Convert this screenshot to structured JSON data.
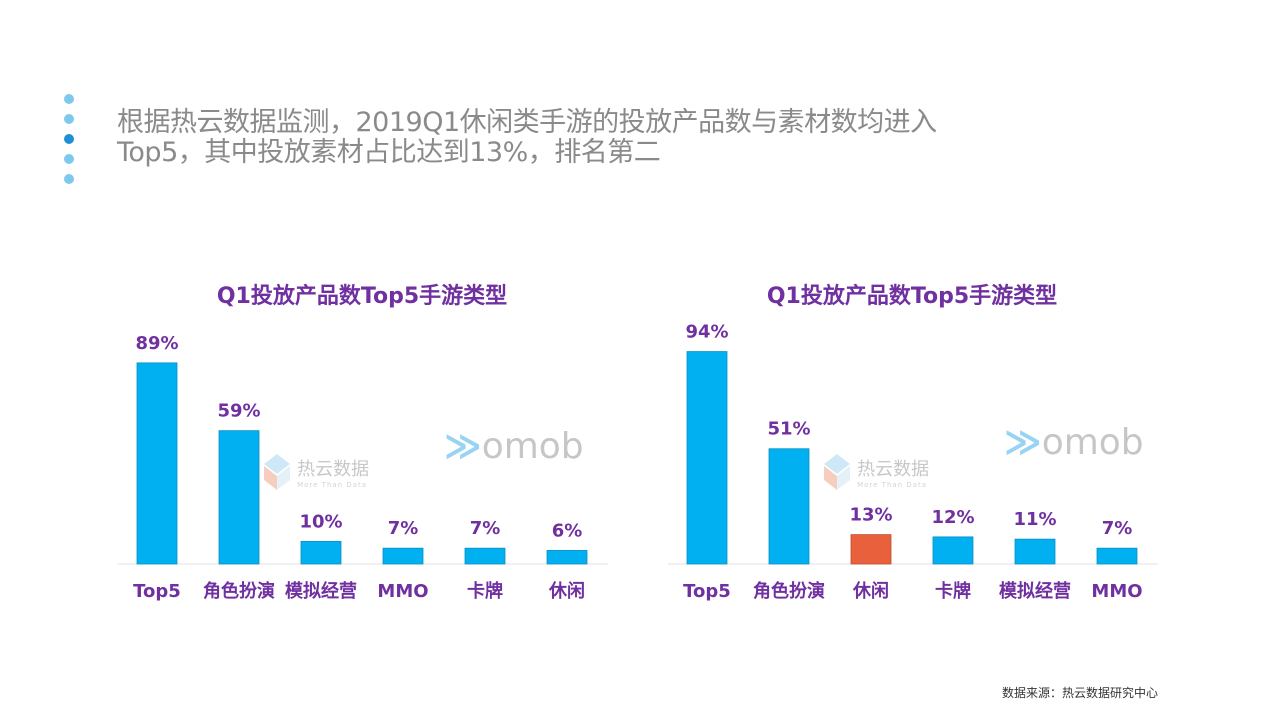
{
  "headline": {
    "line1": "根据热云数据监测，2019Q1休闲类手游的投放产品数与素材数均进入",
    "line2": "Top5，其中投放素材占比达到13%，排名第二"
  },
  "watermarks": {
    "reyun_logo": "热云数据",
    "reyun_tagline": "More Than Data",
    "yomob_logo": "omob"
  },
  "source": "数据来源：热云数据研究中心",
  "colors": {
    "bar": "#00b0f0",
    "highlight": "#e8613c",
    "text": "#7030a0"
  },
  "chart_data": [
    {
      "type": "bar",
      "title": "Q1投放产品数Top5手游类型",
      "categories": [
        "Top5",
        "角色扮演",
        "模拟经营",
        "MMO",
        "卡牌",
        "休闲"
      ],
      "values": [
        89,
        59,
        10,
        7,
        7,
        6
      ],
      "value_labels": [
        "89%",
        "59%",
        "10%",
        "7%",
        "7%",
        "6%"
      ],
      "highlight": [],
      "ylim": [
        0,
        100
      ],
      "grid": false
    },
    {
      "type": "bar",
      "title": "Q1投放产品数Top5手游类型",
      "categories": [
        "Top5",
        "角色扮演",
        "休闲",
        "卡牌",
        "模拟经营",
        "MMO"
      ],
      "values": [
        94,
        51,
        13,
        12,
        11,
        7
      ],
      "value_labels": [
        "94%",
        "51%",
        "13%",
        "12%",
        "11%",
        "7%"
      ],
      "highlight": [
        "休闲"
      ],
      "ylim": [
        0,
        100
      ],
      "grid": false
    }
  ]
}
